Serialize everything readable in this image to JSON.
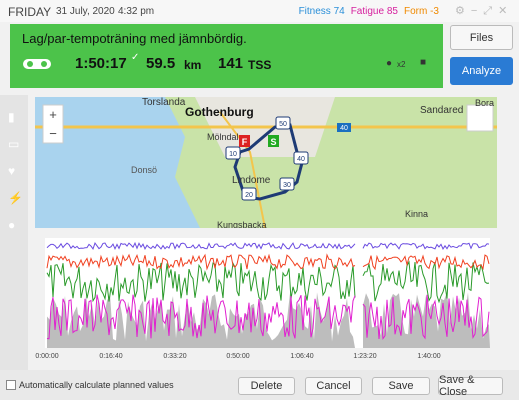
{
  "header": {
    "day": "FRIDAY",
    "date": "31 July, 2020",
    "time": "4:32 pm",
    "metrics": [
      {
        "label": "Fitness",
        "value": 74,
        "color": "#2a8fd8"
      },
      {
        "label": "Fatigue",
        "value": 85,
        "color": "#d61f9e"
      },
      {
        "label": "Form",
        "value": -3,
        "color": "#f08a00"
      }
    ]
  },
  "workout": {
    "title": "Lag/par-tempoträning med jämnbördig.",
    "duration": "1:50:17",
    "distance": "59.5",
    "distance_unit": "km",
    "tss": "141",
    "tss_unit": "TSS",
    "count": "x2"
  },
  "buttons": {
    "files": "Files",
    "analyze": "Analyze"
  },
  "map": {
    "places": [
      "Torslanda",
      "Gothenburg",
      "Sandared",
      "Bora",
      "Mölndal",
      "Donsö",
      "Lindome",
      "Kinna",
      "Kungsbacka"
    ],
    "markers": [
      "50",
      "40",
      "30",
      "20",
      "10"
    ],
    "highway": "40",
    "finish": "F",
    "start": "S"
  },
  "chart": {
    "xticks": [
      "0:00:00",
      "0:16:40",
      "0:33:20",
      "0:50:00",
      "1:06:40",
      "1:23:20",
      "1:40:00"
    ]
  },
  "footer": {
    "checkbox": "Automatically calculate planned values",
    "delete": "Delete",
    "cancel": "Cancel",
    "save": "Save",
    "save_close": "Save & Close"
  }
}
